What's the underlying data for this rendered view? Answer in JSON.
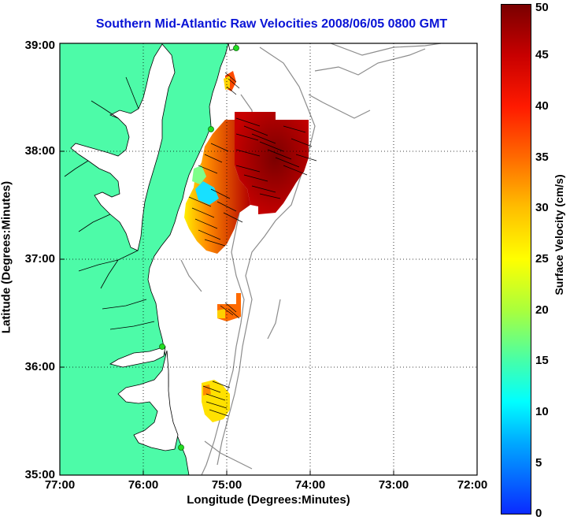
{
  "title": "Southern Mid-Atlantic Raw Velocities 2008/06/05 0800 GMT",
  "axes": {
    "xlabel": "Longitude (Degrees:Minutes)",
    "ylabel": "Latitude (Degrees:Minutes)",
    "x_ticks": [
      "77:00",
      "76:00",
      "75:00",
      "74:00",
      "73:00",
      "72:00"
    ],
    "y_ticks": [
      "39:00",
      "38:00",
      "37:00",
      "36:00",
      "35:00"
    ]
  },
  "colorbar": {
    "label": "Surface Velocity (cm/s)",
    "ticks": [
      "0",
      "5",
      "10",
      "15",
      "20",
      "25",
      "30",
      "35",
      "40",
      "45",
      "50"
    ],
    "range": [
      0,
      50
    ]
  },
  "colors": {
    "land": "#4dfba8",
    "coast": "#000000",
    "bathymetry": "#8c8c8c",
    "title": "#0a14d6",
    "station": "#22dd22"
  }
}
